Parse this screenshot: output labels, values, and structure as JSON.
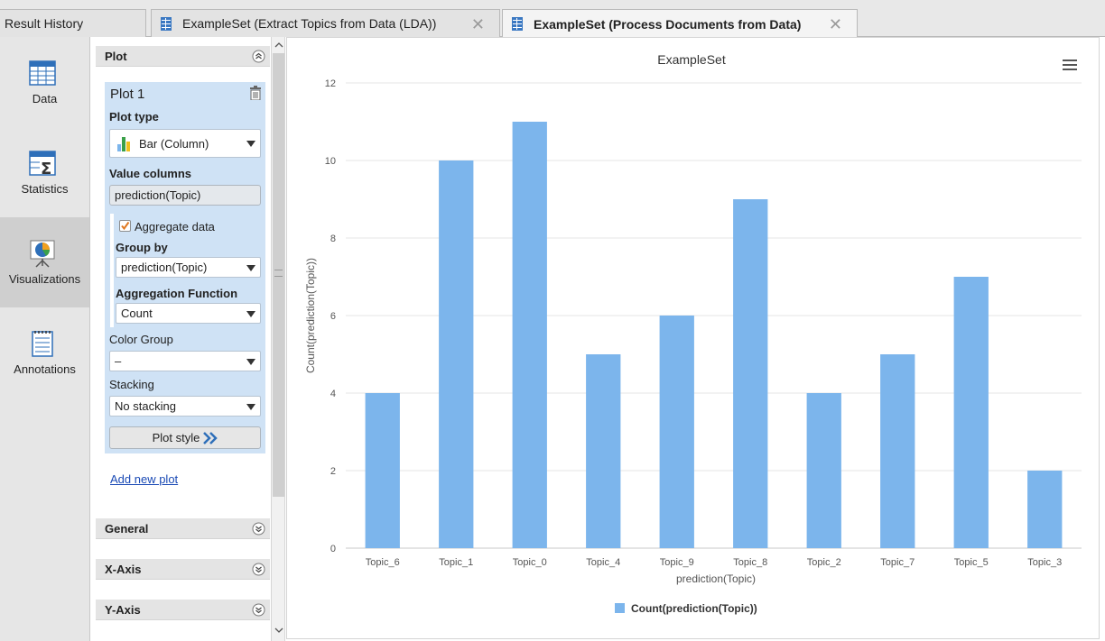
{
  "tabs": [
    {
      "label": "Result History",
      "active": false,
      "closable": false
    },
    {
      "label": "ExampleSet (Extract Topics from Data (LDA))",
      "active": false,
      "closable": true
    },
    {
      "label": "ExampleSet (Process Documents from Data)",
      "active": true,
      "closable": true
    }
  ],
  "sidebar": {
    "items": [
      {
        "label": "Data",
        "icon": "table-icon",
        "active": false
      },
      {
        "label": "Statistics",
        "icon": "sigma-table-icon",
        "active": false
      },
      {
        "label": "Visualizations",
        "icon": "pie-chart-easel-icon",
        "active": true
      },
      {
        "label": "Annotations",
        "icon": "notepad-icon",
        "active": false
      }
    ]
  },
  "config": {
    "plot_section": "Plot",
    "plot_title": "Plot 1",
    "plot_type_label": "Plot type",
    "plot_type_value": "Bar (Column)",
    "value_columns_label": "Value columns",
    "value_columns_value": "prediction(Topic)",
    "aggregate_label": "Aggregate data",
    "aggregate_checked": true,
    "group_by_label": "Group by",
    "group_by_value": "prediction(Topic)",
    "agg_function_label": "Aggregation Function",
    "agg_function_value": "Count",
    "color_group_label": "Color Group",
    "color_group_value": "–",
    "stacking_label": "Stacking",
    "stacking_value": "No stacking",
    "plot_style_label": "Plot style",
    "add_new_plot": "Add new plot",
    "general_section": "General",
    "xaxis_section": "X-Axis",
    "yaxis_section": "Y-Axis"
  },
  "colors": {
    "bar": "#7cb5ec",
    "accent_blue": "#cfe2f5",
    "link": "#1a4ab5"
  },
  "chart_data": {
    "type": "bar",
    "title": "ExampleSet",
    "xlabel": "prediction(Topic)",
    "ylabel": "Count(prediction(Topic))",
    "categories": [
      "Topic_6",
      "Topic_1",
      "Topic_0",
      "Topic_4",
      "Topic_9",
      "Topic_8",
      "Topic_2",
      "Topic_7",
      "Topic_5",
      "Topic_3"
    ],
    "series": [
      {
        "name": "Count(prediction(Topic))",
        "values": [
          4,
          10,
          11,
          5,
          6,
          9,
          4,
          5,
          7,
          2
        ]
      }
    ],
    "ylim": [
      0,
      12
    ],
    "yticks": [
      0,
      2,
      4,
      6,
      8,
      10,
      12
    ],
    "grid": true,
    "legend": "bottom-center",
    "menu_icon": "hamburger-menu-icon"
  }
}
